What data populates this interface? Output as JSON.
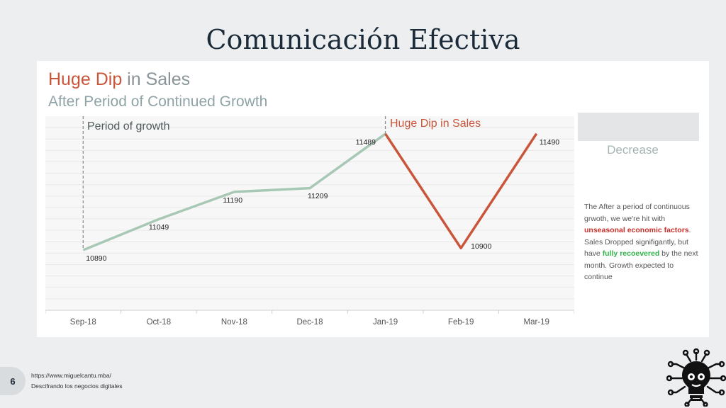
{
  "slide": {
    "title": "Comunicación Efectiva",
    "page_number": "6",
    "footer_url": "https://www.miguelcantu.mba/",
    "footer_tagline": "Descifrando los negocios digitales",
    "logo_icon": "lightbulb-brain-circuit-icon"
  },
  "legend": {
    "text": "Decrease"
  },
  "note": {
    "part1": "The After a period of continuous grwoth, we we're hit with ",
    "red": "unseasonal economic factors",
    "part2": ". Sales Dropped signifigantly, but have ",
    "green": "fully recoevered",
    "part3": " by the next month. Growth expected to continue"
  },
  "chart_data": {
    "type": "line",
    "title_accent": "Huge Dip",
    "title_rest": " in Sales",
    "subtitle": "After Period of Continued Growth",
    "categories": [
      "Sep-18",
      "Oct-18",
      "Nov-18",
      "Dec-18",
      "Jan-19",
      "Feb-19",
      "Mar-19"
    ],
    "values": [
      10890,
      11049,
      11190,
      11209,
      11489,
      10900,
      11490
    ],
    "data_labels": [
      "10890",
      "11049",
      "11190",
      "11209",
      "11489",
      "10900",
      "11490"
    ],
    "ylim": [
      10580,
      11580
    ],
    "growth_label": "Period of growth",
    "dip_label": "Huge Dip in Sales",
    "colors": {
      "growth": "#a8c8b6",
      "dip": "#c9563a",
      "marker": "#8a8a8a"
    },
    "grid": true
  }
}
